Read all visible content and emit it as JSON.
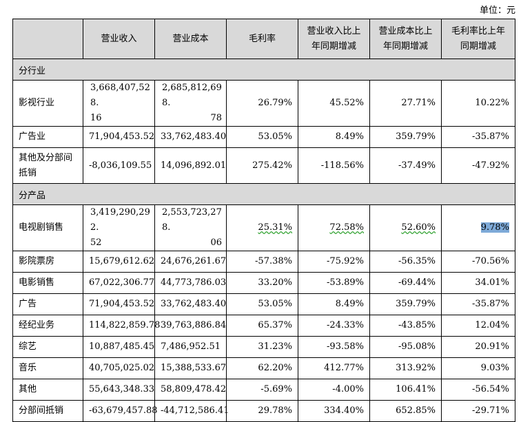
{
  "unit_label": "单位：元",
  "headers": [
    "",
    "营业收入",
    "营业成本",
    "毛利率",
    "营业收入比上年同期增减",
    "营业成本比上年同期增减",
    "毛利率比上年同期增减"
  ],
  "headers_split": {
    "col4": [
      "营业收入比上",
      "年同期增减"
    ],
    "col5": [
      "营业成本比上",
      "年同期增减"
    ],
    "col6": [
      "毛利率比上年",
      "同期增减"
    ]
  },
  "sections": [
    {
      "title": "分行业",
      "rows": [
        {
          "name": "影视行业",
          "revenue": [
            "3,668,407,528.",
            "16"
          ],
          "cost": [
            "2,685,812,698.",
            "78"
          ],
          "margin": "26.79%",
          "rev_change": "45.52%",
          "cost_change": "27.71%",
          "margin_change": "10.22%"
        },
        {
          "name": "广告业",
          "revenue": "71,904,453.52",
          "cost": "33,762,483.40",
          "margin": "53.05%",
          "rev_change": "8.49%",
          "cost_change": "359.79%",
          "margin_change": "-35.87%"
        },
        {
          "name": "其他及分部间抵销",
          "name_lines": [
            "其他及分部间",
            "抵销"
          ],
          "revenue": "-8,036,109.55",
          "cost": "14,096,892.01",
          "margin": "275.42%",
          "rev_change": "-118.56%",
          "cost_change": "-37.49%",
          "margin_change": "-47.92%"
        }
      ]
    },
    {
      "title": "分产品",
      "rows": [
        {
          "name": "电视剧销售",
          "revenue": [
            "3,419,290,292.",
            "52"
          ],
          "cost": [
            "2,553,723,278.",
            "06"
          ],
          "margin": "25.31%",
          "rev_change": "72.58%",
          "cost_change": "52.60%",
          "margin_change": "9.78%"
        },
        {
          "name": "影院票房",
          "revenue": "15,679,612.62",
          "cost": "24,676,261.67",
          "margin": "-57.38%",
          "rev_change": "-75.92%",
          "cost_change": "-56.35%",
          "margin_change": "-70.56%"
        },
        {
          "name": "电影销售",
          "revenue": "67,022,306.77",
          "cost": "44,773,786.03",
          "margin": "33.20%",
          "rev_change": "-53.89%",
          "cost_change": "-69.44%",
          "margin_change": "34.01%"
        },
        {
          "name": "广告",
          "revenue": "71,904,453.52",
          "cost": "33,762,483.40",
          "margin": "53.05%",
          "rev_change": "8.49%",
          "cost_change": "359.79%",
          "margin_change": "-35.87%"
        },
        {
          "name": "经纪业务",
          "revenue": "114,822,859.78",
          "cost": "39,763,886.84",
          "margin": "65.37%",
          "rev_change": "-24.33%",
          "cost_change": "-43.85%",
          "margin_change": "12.04%"
        },
        {
          "name": "综艺",
          "revenue": "10,887,485.45",
          "cost": "7,486,952.51",
          "margin": "31.23%",
          "rev_change": "-93.58%",
          "cost_change": "-95.08%",
          "margin_change": "20.91%"
        },
        {
          "name": "音乐",
          "revenue": "40,705,025.02",
          "cost": "15,388,533.67",
          "margin": "62.20%",
          "rev_change": "412.77%",
          "cost_change": "313.92%",
          "margin_change": "9.03%"
        },
        {
          "name": "其他",
          "revenue": "55,643,348.33",
          "cost": "58,809,478.42",
          "margin": "-5.69%",
          "rev_change": "-4.00%",
          "cost_change": "106.41%",
          "margin_change": "-56.54%"
        },
        {
          "name": "分部间抵销",
          "revenue": "-63,679,457.88",
          "cost": "-44,712,586.41",
          "margin": "29.78%",
          "rev_change": "334.40%",
          "cost_change": "652.85%",
          "margin_change": "-29.71%"
        }
      ]
    }
  ]
}
